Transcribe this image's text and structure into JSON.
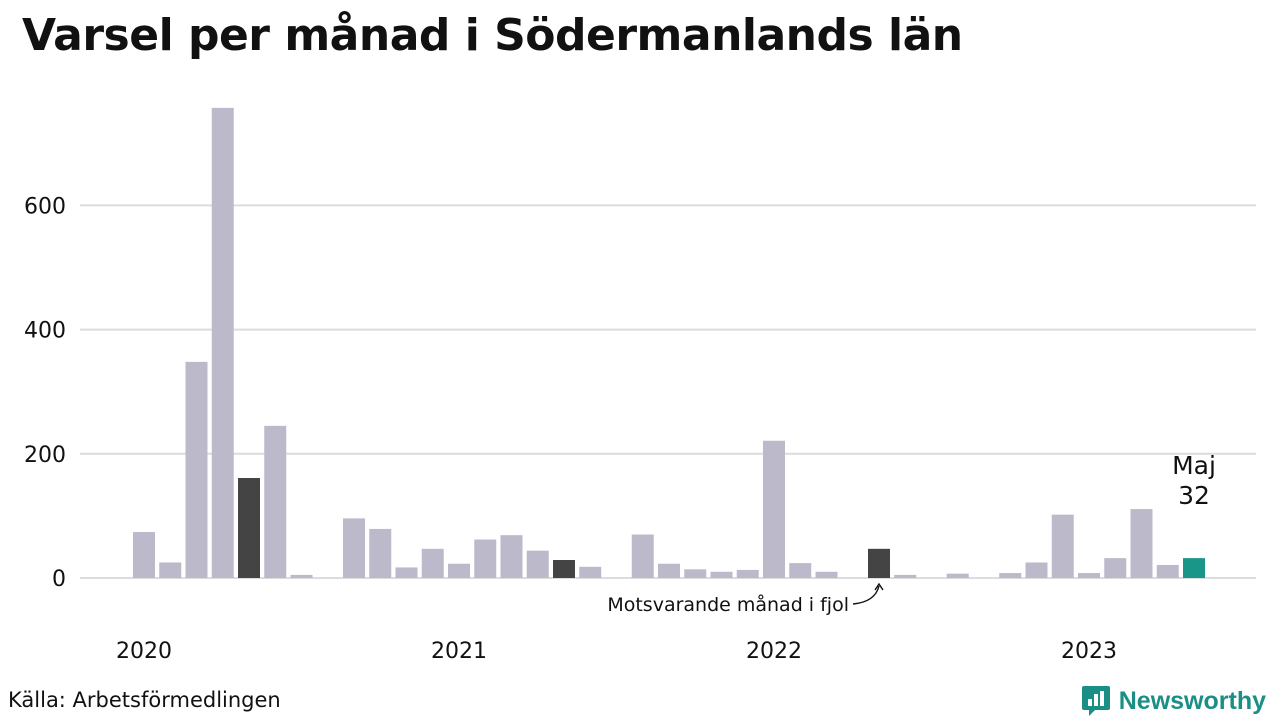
{
  "title": "Varsel per månad i Södermanlands län",
  "source": "Källa: Arbetsförmedlingen",
  "brand": {
    "name": "Newsworthy",
    "icon": "newsworthy-logo-icon",
    "color": "#1a8f86"
  },
  "chart_data": {
    "type": "bar",
    "title": "Varsel per månad i Södermanlands län",
    "xlabel": "",
    "ylabel": "",
    "ylim": [
      0,
      760
    ],
    "yticks": [
      0,
      200,
      400,
      600
    ],
    "grid": true,
    "x_year_labels": [
      "2020",
      "2021",
      "2022",
      "2023"
    ],
    "categories": [
      "2020-01",
      "2020-02",
      "2020-03",
      "2020-04",
      "2020-05",
      "2020-06",
      "2020-07",
      "2020-08",
      "2020-09",
      "2020-10",
      "2020-11",
      "2020-12",
      "2021-01",
      "2021-02",
      "2021-03",
      "2021-04",
      "2021-05",
      "2021-06",
      "2021-07",
      "2021-08",
      "2021-09",
      "2021-10",
      "2021-11",
      "2021-12",
      "2022-01",
      "2022-02",
      "2022-03",
      "2022-04",
      "2022-05",
      "2022-06",
      "2022-07",
      "2022-08",
      "2022-09",
      "2022-10",
      "2022-11",
      "2022-12",
      "2023-01",
      "2023-02",
      "2023-03",
      "2023-04",
      "2023-05"
    ],
    "values": [
      74,
      25,
      348,
      757,
      161,
      245,
      5,
      0,
      96,
      79,
      17,
      47,
      23,
      62,
      69,
      44,
      29,
      18,
      0,
      70,
      23,
      14,
      10,
      13,
      221,
      24,
      10,
      0,
      47,
      5,
      0,
      7,
      0,
      8,
      25,
      102,
      8,
      32,
      111,
      21,
      32
    ],
    "highlight_same_month": [
      "2020-05",
      "2021-05",
      "2022-05"
    ],
    "current": "2023-05",
    "colors": {
      "default": "#bcbaca",
      "same_month": "#444444",
      "current": "#1a9688",
      "grid": "#dcdcdc"
    },
    "annotations": [
      {
        "text": "Motsvarande månad i fjol",
        "target": "2022-05"
      },
      {
        "text": "Maj",
        "target": "2023-05"
      },
      {
        "text": "32",
        "target": "2023-05"
      }
    ]
  }
}
